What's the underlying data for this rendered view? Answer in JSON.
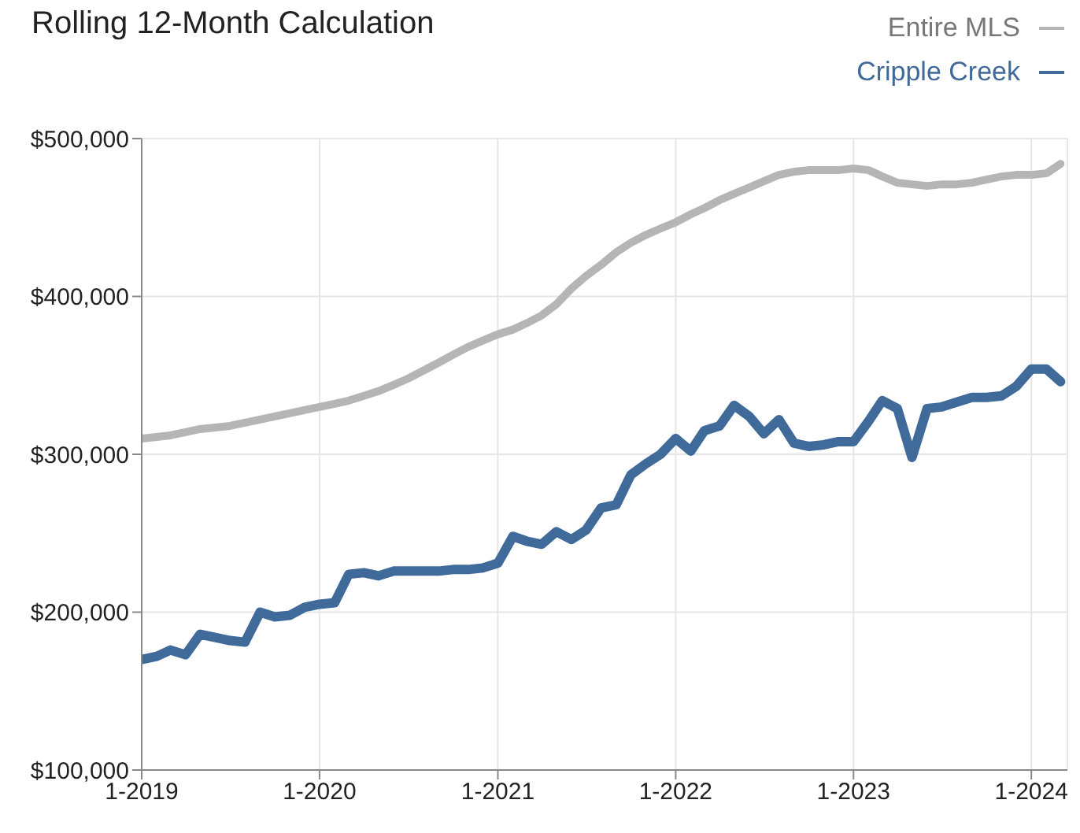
{
  "chart_data": {
    "type": "line",
    "title": "Rolling 12-Month Calculation",
    "x": [
      "2019-01",
      "2019-02",
      "2019-03",
      "2019-04",
      "2019-05",
      "2019-06",
      "2019-07",
      "2019-08",
      "2019-09",
      "2019-10",
      "2019-11",
      "2019-12",
      "2020-01",
      "2020-02",
      "2020-03",
      "2020-04",
      "2020-05",
      "2020-06",
      "2020-07",
      "2020-08",
      "2020-09",
      "2020-10",
      "2020-11",
      "2020-12",
      "2021-01",
      "2021-02",
      "2021-03",
      "2021-04",
      "2021-05",
      "2021-06",
      "2021-07",
      "2021-08",
      "2021-09",
      "2021-10",
      "2021-11",
      "2021-12",
      "2022-01",
      "2022-02",
      "2022-03",
      "2022-04",
      "2022-05",
      "2022-06",
      "2022-07",
      "2022-08",
      "2022-09",
      "2022-10",
      "2022-11",
      "2022-12",
      "2023-01",
      "2023-02",
      "2023-03",
      "2023-04",
      "2023-05",
      "2023-06",
      "2023-07",
      "2023-08",
      "2023-09",
      "2023-10",
      "2023-11",
      "2023-12",
      "2024-01",
      "2024-02",
      "2024-03"
    ],
    "series": [
      {
        "name": "Entire MLS",
        "color": "#b5b5b5",
        "values": [
          310000,
          311000,
          312000,
          314000,
          316000,
          317000,
          318000,
          320000,
          322000,
          324000,
          326000,
          328000,
          330000,
          332000,
          334000,
          337000,
          340000,
          344000,
          348000,
          353000,
          358000,
          363000,
          368000,
          372000,
          376000,
          379000,
          383000,
          388000,
          395000,
          405000,
          413000,
          420000,
          428000,
          434000,
          439000,
          443000,
          447000,
          452000,
          456000,
          461000,
          465000,
          469000,
          473000,
          477000,
          479000,
          480000,
          480000,
          480000,
          481000,
          480000,
          476000,
          472000,
          471000,
          470000,
          471000,
          471000,
          472000,
          474000,
          476000,
          477000,
          477000,
          478000,
          484000
        ]
      },
      {
        "name": "Cripple Creek",
        "color": "#3f6a9a",
        "values": [
          170000,
          172000,
          176000,
          173000,
          186000,
          184000,
          182000,
          181000,
          200000,
          197000,
          198000,
          203000,
          205000,
          206000,
          224000,
          225000,
          223000,
          226000,
          226000,
          226000,
          226000,
          227000,
          227000,
          228000,
          231000,
          248000,
          245000,
          243000,
          251000,
          246000,
          252000,
          266000,
          268000,
          287000,
          294000,
          300000,
          310000,
          302000,
          315000,
          318000,
          331000,
          324000,
          313000,
          322000,
          307000,
          305000,
          306000,
          308000,
          308000,
          321000,
          334000,
          329000,
          298000,
          329000,
          330000,
          333000,
          336000,
          336000,
          337000,
          343000,
          354000,
          354000,
          346000
        ]
      }
    ],
    "xlim": [
      "2019-01",
      "2024-03-15"
    ],
    "xticks": [
      {
        "value": "2019-01",
        "label": "1-2019"
      },
      {
        "value": "2020-01",
        "label": "1-2020"
      },
      {
        "value": "2021-01",
        "label": "1-2021"
      },
      {
        "value": "2022-01",
        "label": "1-2022"
      },
      {
        "value": "2023-01",
        "label": "1-2023"
      },
      {
        "value": "2024-01",
        "label": "1-2024"
      }
    ],
    "ylim": [
      100000,
      500000
    ],
    "yticks": [
      {
        "value": 100000,
        "label": "$100,000"
      },
      {
        "value": 200000,
        "label": "$200,000"
      },
      {
        "value": 300000,
        "label": "$300,000"
      },
      {
        "value": 400000,
        "label": "$400,000"
      },
      {
        "value": 500000,
        "label": "$500,000"
      }
    ],
    "grid": true,
    "legend": "top right",
    "marker": "none",
    "line_style": "solid"
  }
}
